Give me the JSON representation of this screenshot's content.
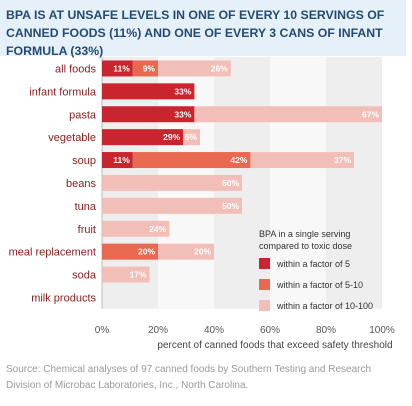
{
  "chart_data": {
    "type": "bar",
    "orientation": "horizontal",
    "stacked": true,
    "title": "BPA IS AT UNSAFE LEVELS IN ONE OF EVERY 10 SERVINGS OF CANNED FOODS (11%) AND ONE OF EVERY 3 CANS OF INFANT FORMULA (33%)",
    "xlabel": "percent of canned foods that exceed safety threshold",
    "xlim": [
      0,
      100
    ],
    "x_ticks": [
      "0%",
      "20%",
      "40%",
      "60%",
      "80%",
      "100%"
    ],
    "grid": "alternating vertical bands",
    "categories": [
      "all foods",
      "infant formula",
      "pasta",
      "vegetable",
      "soup",
      "beans",
      "tuna",
      "fruit",
      "meal replacement",
      "soda",
      "milk products"
    ],
    "series": [
      {
        "name": "within a factor of 5",
        "color": "#c8252e",
        "values": [
          11,
          33,
          33,
          29,
          11,
          0,
          0,
          0,
          0,
          0,
          0
        ],
        "labels": [
          "11%",
          "33%",
          "33%",
          "29%",
          "11%",
          "",
          "",
          "",
          "",
          "",
          ""
        ]
      },
      {
        "name": "within a factor of 5-10",
        "color": "#e8694f",
        "values": [
          9,
          0,
          0,
          0,
          42,
          0,
          0,
          0,
          20,
          0,
          0
        ],
        "labels": [
          "9%",
          "",
          "",
          "",
          "42%",
          "",
          "",
          "",
          "20%",
          "",
          ""
        ]
      },
      {
        "name": "within a factor of 10-100",
        "color": "#f2bfb8",
        "values": [
          26,
          0,
          67,
          6,
          37,
          50,
          50,
          24,
          20,
          17,
          0
        ],
        "labels": [
          "26%",
          "",
          "67%",
          "6%",
          "37%",
          "50%",
          "50%",
          "24%",
          "20%",
          "17%",
          ""
        ]
      }
    ],
    "legend": {
      "title_lines": [
        "BPA in a single serving",
        "compared to toxic dose"
      ],
      "placement": "lower-right"
    },
    "source": "Source: Chemical analyses of 97 canned foods by Southern Testing and Research Division of Microbac Laboratories, Inc., North Carolina."
  }
}
